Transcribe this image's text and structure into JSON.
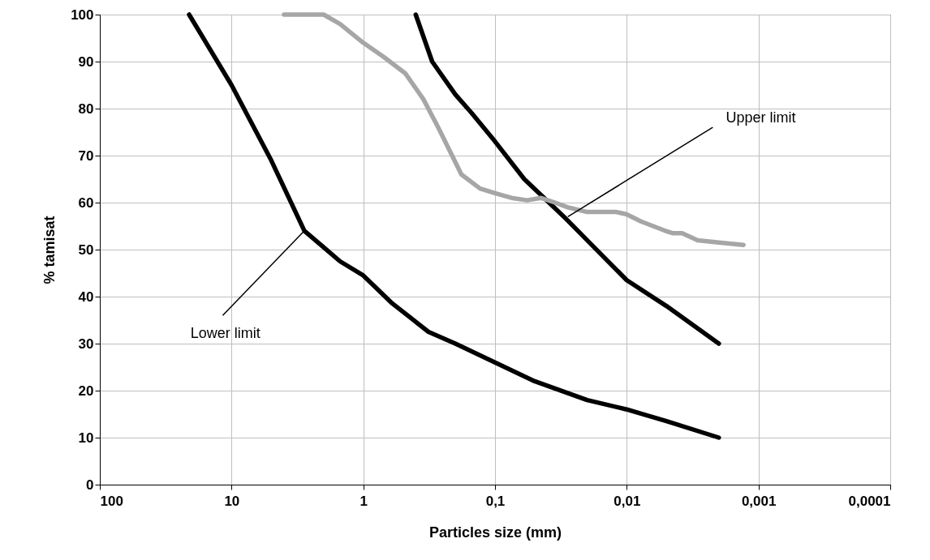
{
  "chart_data": {
    "type": "line",
    "xlabel": "Particles size (mm)",
    "ylabel": "% tamisat",
    "log": "x",
    "xlim": [
      100,
      0.0001
    ],
    "xticks": [
      100,
      10,
      1,
      {
        "value": 0.1,
        "label": "0,1"
      },
      {
        "value": 0.01,
        "label": "0,01"
      },
      {
        "value": 0.001,
        "label": "0,001"
      },
      {
        "value": 0.0001,
        "label": "0,0001"
      }
    ],
    "ylim": [
      0,
      100
    ],
    "yticks": [
      0,
      10,
      20,
      30,
      40,
      50,
      60,
      70,
      80,
      90,
      100
    ],
    "grid": true,
    "marker": "none",
    "line_style": "solid",
    "series": [
      {
        "color": "#000000",
        "x": [
          21,
          10,
          5,
          2.8,
          2,
          1.5,
          1,
          0.6,
          0.32,
          0.2,
          0.1,
          0.05,
          0.02,
          0.01,
          0.005,
          0.002
        ],
        "values": [
          100,
          85,
          69,
          54,
          50.5,
          47.5,
          44.5,
          38.5,
          32.5,
          30,
          26,
          22,
          18,
          16,
          13.5,
          10
        ]
      },
      {
        "color": "#000000",
        "x": [
          0.4,
          0.3,
          0.2,
          0.15,
          0.1,
          0.06,
          0.03,
          0.02,
          0.01,
          0.005,
          0.002
        ],
        "values": [
          100,
          90,
          83,
          79,
          73,
          65,
          57,
          52,
          43.5,
          38,
          30
        ]
      },
      {
        "color": "#a6a6a6",
        "x": [
          4,
          2.5,
          2,
          1.5,
          1,
          0.7,
          0.48,
          0.35,
          0.27,
          0.18,
          0.13,
          0.1,
          0.075,
          0.057,
          0.045,
          0.035,
          0.028,
          0.02,
          0.015,
          0.012,
          0.01,
          0.0078,
          0.0051,
          0.0045,
          0.0038,
          0.0029,
          0.002,
          0.0013
        ],
        "values": [
          100,
          100,
          100,
          98,
          94,
          91,
          87.5,
          82,
          76,
          66,
          63,
          62,
          61,
          60.5,
          61,
          60,
          59,
          58,
          58,
          58,
          57.5,
          56,
          54,
          53.5,
          53.5,
          52,
          51.5,
          51
        ]
      }
    ],
    "annotations": [
      {
        "text": "Upper limit",
        "x": 0.028,
        "y": 57
      },
      {
        "text": "Lower limit",
        "x": 2.8,
        "y": 54
      }
    ]
  }
}
